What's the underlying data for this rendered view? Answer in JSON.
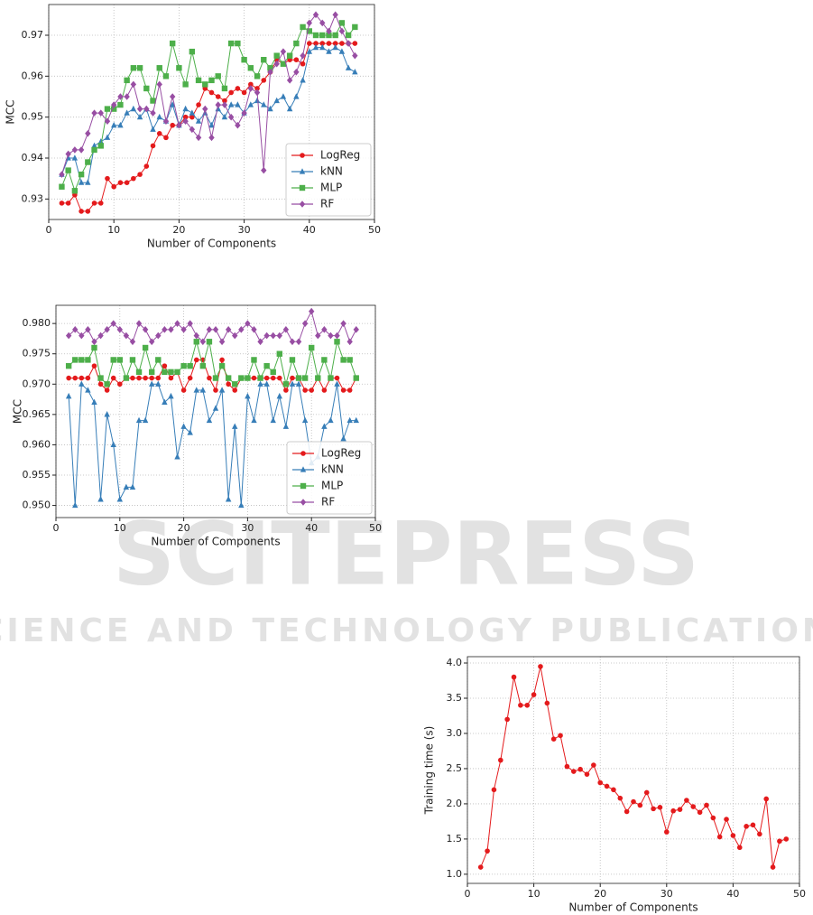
{
  "watermark": {
    "title": "SCITEPRESS",
    "subtitle": "SCIENCE AND TECHNOLOGY PUBLICATIONS"
  },
  "chart_data": [
    {
      "type": "line",
      "x_label": "Number of Components",
      "y_label": "MCC",
      "x": [
        2,
        3,
        4,
        5,
        6,
        7,
        8,
        9,
        10,
        11,
        12,
        13,
        14,
        15,
        16,
        17,
        18,
        19,
        20,
        21,
        22,
        23,
        24,
        25,
        26,
        27,
        28,
        29,
        30,
        31,
        32,
        33,
        34,
        35,
        36,
        37,
        38,
        39,
        40,
        41,
        42,
        43,
        44,
        45,
        46,
        47
      ],
      "series": [
        {
          "name": "LogReg",
          "color": "#e41a1c",
          "marker": "circle",
          "values": [
            0.929,
            0.929,
            0.931,
            0.927,
            0.927,
            0.929,
            0.929,
            0.935,
            0.933,
            0.934,
            0.934,
            0.935,
            0.936,
            0.938,
            0.943,
            0.946,
            0.945,
            0.948,
            0.948,
            0.95,
            0.95,
            0.953,
            0.957,
            0.956,
            0.955,
            0.954,
            0.956,
            0.957,
            0.956,
            0.958,
            0.957,
            0.959,
            0.961,
            0.964,
            0.963,
            0.964,
            0.964,
            0.963,
            0.968,
            0.968,
            0.968,
            0.968,
            0.968,
            0.968,
            0.968,
            0.968
          ]
        },
        {
          "name": "kNN",
          "color": "#377eb8",
          "marker": "triangle",
          "values": [
            0.936,
            0.94,
            0.94,
            0.934,
            0.934,
            0.943,
            0.944,
            0.945,
            0.948,
            0.948,
            0.951,
            0.952,
            0.95,
            0.952,
            0.947,
            0.95,
            0.949,
            0.953,
            0.948,
            0.952,
            0.951,
            0.949,
            0.951,
            0.948,
            0.952,
            0.95,
            0.953,
            0.953,
            0.951,
            0.953,
            0.954,
            0.953,
            0.952,
            0.954,
            0.955,
            0.952,
            0.955,
            0.959,
            0.966,
            0.967,
            0.967,
            0.966,
            0.967,
            0.966,
            0.962,
            0.961
          ]
        },
        {
          "name": "MLP",
          "color": "#4daf4a",
          "marker": "square",
          "values": [
            0.933,
            0.937,
            0.932,
            0.936,
            0.939,
            0.942,
            0.943,
            0.952,
            0.952,
            0.953,
            0.959,
            0.962,
            0.962,
            0.957,
            0.954,
            0.962,
            0.96,
            0.968,
            0.962,
            0.958,
            0.966,
            0.959,
            0.958,
            0.959,
            0.96,
            0.957,
            0.968,
            0.968,
            0.964,
            0.962,
            0.96,
            0.964,
            0.962,
            0.965,
            0.963,
            0.965,
            0.968,
            0.972,
            0.971,
            0.97,
            0.97,
            0.97,
            0.97,
            0.973,
            0.97,
            0.972
          ]
        },
        {
          "name": "RF",
          "color": "#984ea3",
          "marker": "diamond",
          "values": [
            0.936,
            0.941,
            0.942,
            0.942,
            0.946,
            0.951,
            0.951,
            0.949,
            0.953,
            0.955,
            0.955,
            0.958,
            0.952,
            0.952,
            0.951,
            0.958,
            0.949,
            0.955,
            0.948,
            0.949,
            0.947,
            0.945,
            0.952,
            0.945,
            0.953,
            0.953,
            0.95,
            0.948,
            0.951,
            0.957,
            0.956,
            0.937,
            0.961,
            0.963,
            0.966,
            0.959,
            0.961,
            0.965,
            0.973,
            0.975,
            0.973,
            0.971,
            0.975,
            0.971,
            0.968,
            0.965
          ]
        }
      ],
      "xlim": [
        0,
        50
      ],
      "xticks": [
        0,
        10,
        20,
        30,
        40,
        50
      ],
      "ylim": [
        0.925,
        0.9775
      ],
      "yticks": [
        0.93,
        0.94,
        0.95,
        0.96,
        0.97
      ],
      "grid": true,
      "legend": "lower right"
    },
    {
      "type": "line",
      "x_label": "Number of Components",
      "y_label": "MCC",
      "x": [
        2,
        3,
        4,
        5,
        6,
        7,
        8,
        9,
        10,
        11,
        12,
        13,
        14,
        15,
        16,
        17,
        18,
        19,
        20,
        21,
        22,
        23,
        24,
        25,
        26,
        27,
        28,
        29,
        30,
        31,
        32,
        33,
        34,
        35,
        36,
        37,
        38,
        39,
        40,
        41,
        42,
        43,
        44,
        45,
        46,
        47
      ],
      "series": [
        {
          "name": "LogReg",
          "color": "#e41a1c",
          "marker": "circle",
          "values": [
            0.971,
            0.971,
            0.971,
            0.971,
            0.973,
            0.97,
            0.969,
            0.971,
            0.97,
            0.971,
            0.971,
            0.971,
            0.971,
            0.971,
            0.971,
            0.973,
            0.971,
            0.972,
            0.969,
            0.971,
            0.974,
            0.974,
            0.971,
            0.969,
            0.974,
            0.97,
            0.969,
            0.971,
            0.971,
            0.971,
            0.971,
            0.971,
            0.971,
            0.971,
            0.969,
            0.971,
            0.971,
            0.969,
            0.969,
            0.971,
            0.969,
            0.971,
            0.971,
            0.969,
            0.969,
            0.971
          ]
        },
        {
          "name": "kNN",
          "color": "#377eb8",
          "marker": "triangle",
          "values": [
            0.968,
            0.95,
            0.97,
            0.969,
            0.967,
            0.951,
            0.965,
            0.96,
            0.951,
            0.953,
            0.953,
            0.964,
            0.964,
            0.97,
            0.97,
            0.967,
            0.968,
            0.958,
            0.963,
            0.962,
            0.969,
            0.969,
            0.964,
            0.966,
            0.969,
            0.951,
            0.963,
            0.95,
            0.968,
            0.964,
            0.97,
            0.97,
            0.964,
            0.968,
            0.963,
            0.97,
            0.97,
            0.964,
            0.957,
            0.958,
            0.963,
            0.964,
            0.97,
            0.961,
            0.964,
            0.964
          ]
        },
        {
          "name": "MLP",
          "color": "#4daf4a",
          "marker": "square",
          "values": [
            0.973,
            0.974,
            0.974,
            0.974,
            0.976,
            0.971,
            0.97,
            0.974,
            0.974,
            0.971,
            0.974,
            0.972,
            0.976,
            0.972,
            0.974,
            0.972,
            0.972,
            0.972,
            0.973,
            0.973,
            0.977,
            0.973,
            0.977,
            0.971,
            0.973,
            0.971,
            0.97,
            0.971,
            0.971,
            0.974,
            0.971,
            0.973,
            0.972,
            0.975,
            0.97,
            0.974,
            0.971,
            0.971,
            0.976,
            0.971,
            0.974,
            0.971,
            0.977,
            0.974,
            0.974,
            0.971
          ]
        },
        {
          "name": "RF",
          "color": "#984ea3",
          "marker": "diamond",
          "values": [
            0.978,
            0.979,
            0.978,
            0.979,
            0.977,
            0.978,
            0.979,
            0.98,
            0.979,
            0.978,
            0.977,
            0.98,
            0.979,
            0.977,
            0.978,
            0.979,
            0.979,
            0.98,
            0.979,
            0.98,
            0.978,
            0.977,
            0.979,
            0.979,
            0.977,
            0.979,
            0.978,
            0.979,
            0.98,
            0.979,
            0.977,
            0.978,
            0.978,
            0.978,
            0.979,
            0.977,
            0.977,
            0.98,
            0.982,
            0.978,
            0.979,
            0.978,
            0.978,
            0.98,
            0.977,
            0.979
          ]
        }
      ],
      "xlim": [
        0,
        50
      ],
      "xticks": [
        0,
        10,
        20,
        30,
        40,
        50
      ],
      "ylim": [
        0.948,
        0.983
      ],
      "yticks": [
        {
          "value": 0.95,
          "label": "0.950"
        },
        0.955,
        {
          "value": 0.96,
          "label": "0.960"
        },
        0.965,
        {
          "value": 0.97,
          "label": "0.970"
        },
        0.975,
        {
          "value": 0.98,
          "label": "0.980"
        }
      ],
      "grid": true,
      "legend": "lower right"
    },
    {
      "type": "line",
      "x_label": "Number of Components",
      "y_label": "Training time (s)",
      "x": [
        2,
        3,
        4,
        5,
        6,
        7,
        8,
        9,
        10,
        11,
        12,
        13,
        14,
        15,
        16,
        17,
        18,
        19,
        20,
        21,
        22,
        23,
        24,
        25,
        26,
        27,
        28,
        29,
        30,
        31,
        32,
        33,
        34,
        35,
        36,
        37,
        38,
        39,
        40,
        41,
        42,
        43,
        44,
        45,
        46,
        47,
        48
      ],
      "series": [
        {
          "color": "#e41a1c",
          "marker": "circle",
          "values": [
            1.1,
            1.33,
            2.2,
            2.62,
            3.2,
            3.8,
            3.4,
            3.4,
            3.55,
            3.95,
            3.43,
            2.92,
            2.97,
            2.53,
            2.46,
            2.49,
            2.42,
            2.55,
            2.3,
            2.25,
            2.2,
            2.08,
            1.89,
            2.03,
            1.98,
            2.16,
            1.93,
            1.95,
            1.6,
            1.9,
            1.92,
            2.05,
            1.96,
            1.88,
            1.98,
            1.8,
            1.53,
            1.78,
            1.55,
            1.38,
            1.68,
            1.7,
            1.57,
            2.07,
            1.1,
            1.47,
            1.5
          ]
        }
      ],
      "xlim": [
        0,
        50
      ],
      "xticks": [
        0,
        10,
        20,
        30,
        40,
        50
      ],
      "ylim": [
        0.87,
        4.09
      ],
      "yticks": [
        {
          "value": 1,
          "label": "1.0"
        },
        1.5,
        {
          "value": 2,
          "label": "2.0"
        },
        2.5,
        {
          "value": 3,
          "label": "3.0"
        },
        3.5,
        {
          "value": 4,
          "label": "4.0"
        }
      ],
      "grid": true
    }
  ]
}
